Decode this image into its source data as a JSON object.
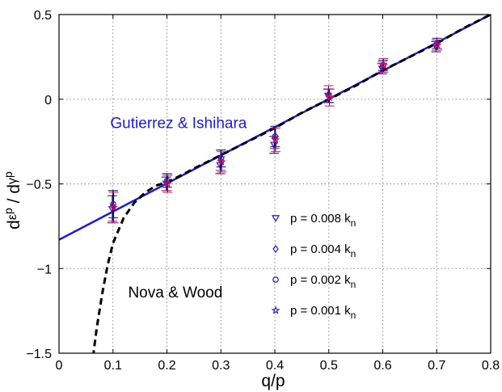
{
  "chart_data": {
    "type": "scatter",
    "xlabel": "q/p",
    "ylabel": {
      "prefix": "d",
      "num_symbol": "ε",
      "num_sup": "p",
      "sep": " / ",
      "den_prefix": "d",
      "den_symbol": "γ",
      "den_sup": "p"
    },
    "xlim": [
      0,
      0.8
    ],
    "ylim": [
      -1.5,
      0.5
    ],
    "xticks": [
      0,
      0.1,
      0.2,
      0.3,
      0.4,
      0.5,
      0.6,
      0.7,
      0.8
    ],
    "xtick_labels": [
      "0",
      "0.1",
      "0.2",
      "0.3",
      "0.4",
      "0.5",
      "0.6",
      "0.7",
      "0.8"
    ],
    "yticks": [
      0.5,
      0,
      -0.5,
      -1,
      -1.5
    ],
    "ytick_labels": [
      "0.5",
      "0",
      "−0.5",
      "−1",
      "−1.5"
    ],
    "grid": true,
    "colors": {
      "axis": "#000000",
      "grid": "#888888",
      "gutierrez": "#1a1adc",
      "nova": "#000000",
      "markers": "#2a2ad0",
      "markers_alt": "#cc1166",
      "errorbars": "#111166"
    },
    "curves": [
      {
        "label": "Gutierrez & Ishihara",
        "kind": "line",
        "color": "#1a1adc",
        "x": [
          0,
          0.8
        ],
        "y": [
          -0.83,
          0.5
        ]
      },
      {
        "label": "Nova & Wood",
        "kind": "dashed",
        "color": "#000000",
        "x": [
          0.063,
          0.07,
          0.08,
          0.09,
          0.1,
          0.12,
          0.14,
          0.16,
          0.18,
          0.2,
          0.22,
          0.25,
          0.3,
          0.35,
          0.4,
          0.45,
          0.5,
          0.55,
          0.6,
          0.65,
          0.7,
          0.75,
          0.8
        ],
        "y": [
          -1.52,
          -1.35,
          -1.15,
          -0.98,
          -0.85,
          -0.7,
          -0.61,
          -0.55,
          -0.51,
          -0.49,
          -0.46,
          -0.41,
          -0.33,
          -0.25,
          -0.17,
          -0.08,
          0.0,
          0.08,
          0.17,
          0.25,
          0.33,
          0.42,
          0.5
        ]
      }
    ],
    "annotations": [
      {
        "text": "Gutierrez & Ishihara",
        "x": 0.095,
        "y": -0.17,
        "color": "#1a1adc"
      },
      {
        "text": "Nova & Wood",
        "x": 0.128,
        "y": -1.17,
        "color": "#000000"
      }
    ],
    "series": [
      {
        "name": "p = 0.008 k_n",
        "marker": "triangle-down",
        "x": [
          0.1,
          0.2,
          0.3,
          0.4,
          0.5,
          0.6,
          0.7
        ],
        "y": [
          -0.65,
          -0.5,
          -0.39,
          -0.27,
          0.02,
          0.18,
          0.31
        ],
        "err": [
          0.08,
          0.04,
          0.05,
          0.05,
          0.04,
          0.03,
          0.03
        ]
      },
      {
        "name": "p = 0.004 k_n",
        "marker": "diamond",
        "x": [
          0.1,
          0.2,
          0.3,
          0.4,
          0.5,
          0.6,
          0.7
        ],
        "y": [
          -0.63,
          -0.49,
          -0.36,
          -0.23,
          0.03,
          0.19,
          0.32
        ],
        "err": [
          0.09,
          0.05,
          0.06,
          0.06,
          0.05,
          0.03,
          0.03
        ]
      },
      {
        "name": "p = 0.002 k_n",
        "marker": "circle",
        "x": [
          0.1,
          0.2,
          0.3,
          0.4,
          0.5,
          0.6,
          0.7
        ],
        "y": [
          -0.62,
          -0.48,
          -0.35,
          -0.22,
          0.02,
          0.2,
          0.33
        ],
        "err": [
          0.08,
          0.04,
          0.05,
          0.06,
          0.04,
          0.03,
          0.03
        ]
      },
      {
        "name": "p = 0.001 k_n",
        "marker": "star",
        "x": [
          0.1,
          0.2,
          0.3,
          0.4,
          0.5,
          0.6,
          0.7
        ],
        "y": [
          -0.64,
          -0.5,
          -0.37,
          -0.24,
          0.01,
          0.2,
          0.32
        ],
        "err": [
          0.09,
          0.05,
          0.06,
          0.07,
          0.05,
          0.04,
          0.03
        ]
      }
    ],
    "legend": {
      "placement": "lower-right inside",
      "entries": [
        {
          "marker": "triangle-down",
          "label": "p = 0.008 k",
          "sub": "n"
        },
        {
          "marker": "diamond",
          "label": "p = 0.004 k",
          "sub": "n"
        },
        {
          "marker": "circle",
          "label": "p = 0.002 k",
          "sub": "n"
        },
        {
          "marker": "star",
          "label": "p = 0.001 k",
          "sub": "n"
        }
      ]
    }
  }
}
